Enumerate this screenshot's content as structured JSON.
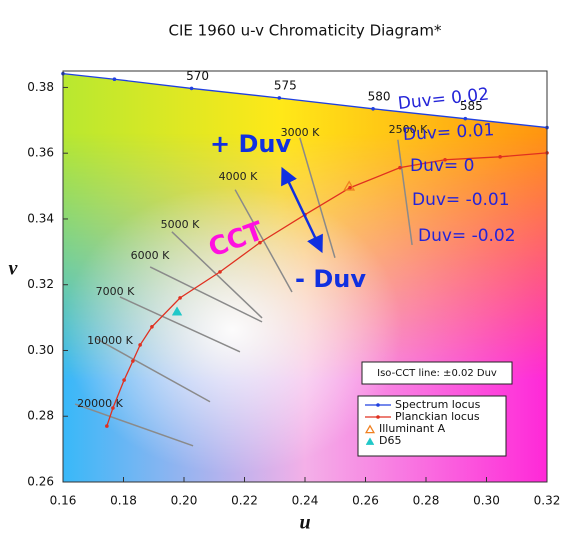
{
  "chart_data": {
    "type": "line",
    "title": "CIE 1960 u-v Chromaticity Diagram*",
    "x_label": "u",
    "y_label": "v",
    "xlim": [
      0.16,
      0.32
    ],
    "ylim": [
      0.26,
      0.385
    ],
    "xticks": [
      0.16,
      0.18,
      {
        "value": 0.2,
        "label": "0.20"
      },
      0.22,
      0.24,
      0.26,
      0.28,
      {
        "value": 0.3,
        "label": "0.30"
      },
      0.32
    ],
    "yticks": [
      0.26,
      0.28,
      {
        "value": 0.3,
        "label": "0.30"
      },
      0.32,
      0.34,
      0.36,
      0.38
    ],
    "series": [
      {
        "name": "Spectrum locus",
        "color": "#2040e0",
        "marker": "dot",
        "x": [
          0.16,
          0.177,
          0.2025,
          0.2315,
          0.2625,
          0.293,
          0.32
        ],
        "values": [
          0.3842,
          0.3825,
          0.3797,
          0.3768,
          0.3735,
          0.3705,
          0.3678
        ],
        "point_labels": [
          null,
          null,
          570,
          575,
          580,
          585,
          null
        ]
      },
      {
        "name": "Planckian locus",
        "color": "#e03020",
        "marker": "dot",
        "x": [
          0.1745,
          0.1765,
          0.1802,
          0.1831,
          0.1855,
          0.1894,
          0.1987,
          0.2119,
          0.2251,
          0.24,
          0.2549,
          0.2714,
          0.2863,
          0.3045,
          0.32
        ],
        "values": [
          0.277,
          0.2825,
          0.291,
          0.2968,
          0.3017,
          0.3072,
          0.316,
          0.3239,
          0.3328,
          0.3413,
          0.3495,
          0.3556,
          0.358,
          0.3589,
          0.3601
        ]
      },
      {
        "name": "Illuminant A",
        "color": "#f08020",
        "marker": "triangle-open",
        "x": [
          0.2546
        ],
        "values": [
          0.3498
        ]
      },
      {
        "name": "D65",
        "color": "#20c8c8",
        "marker": "triangle",
        "x": [
          0.1977
        ],
        "values": [
          0.3117
        ]
      }
    ],
    "iso_cct_lines": [
      {
        "label": "20000 K",
        "x": [
          0.164,
          0.203
        ],
        "values": [
          0.2837,
          0.271
        ]
      },
      {
        "label": "10000 K",
        "x": [
          0.1706,
          0.2086
        ],
        "values": [
          0.3038,
          0.2844
        ]
      },
      {
        "label": "7000 K",
        "x": [
          0.1788,
          0.2185
        ],
        "values": [
          0.3163,
          0.2996
        ]
      },
      {
        "label": "6000 K",
        "x": [
          0.1888,
          0.2258
        ],
        "values": [
          0.3254,
          0.3087
        ]
      },
      {
        "label": "5000 K",
        "x": [
          0.196,
          0.2258
        ],
        "values": [
          0.3361,
          0.3099
        ]
      },
      {
        "label": "4000 K",
        "x": [
          0.2169,
          0.2357
        ],
        "values": [
          0.3489,
          0.3178
        ]
      },
      {
        "label": "3000 K",
        "x": [
          0.2383,
          0.2499
        ],
        "values": [
          0.3647,
          0.3282
        ]
      },
      {
        "label": "2500 K",
        "x": [
          0.2707,
          0.2754
        ],
        "values": [
          0.3641,
          0.3321
        ]
      }
    ],
    "annotations": [
      "+ Duv",
      "CCT",
      "- Duv",
      "Duv= 0.02",
      "Duv= 0.01",
      "Duv= 0",
      "Duv= -0.01",
      "Duv= -0.02"
    ],
    "note": "Iso-CCT line: ±0.02 Duv"
  }
}
